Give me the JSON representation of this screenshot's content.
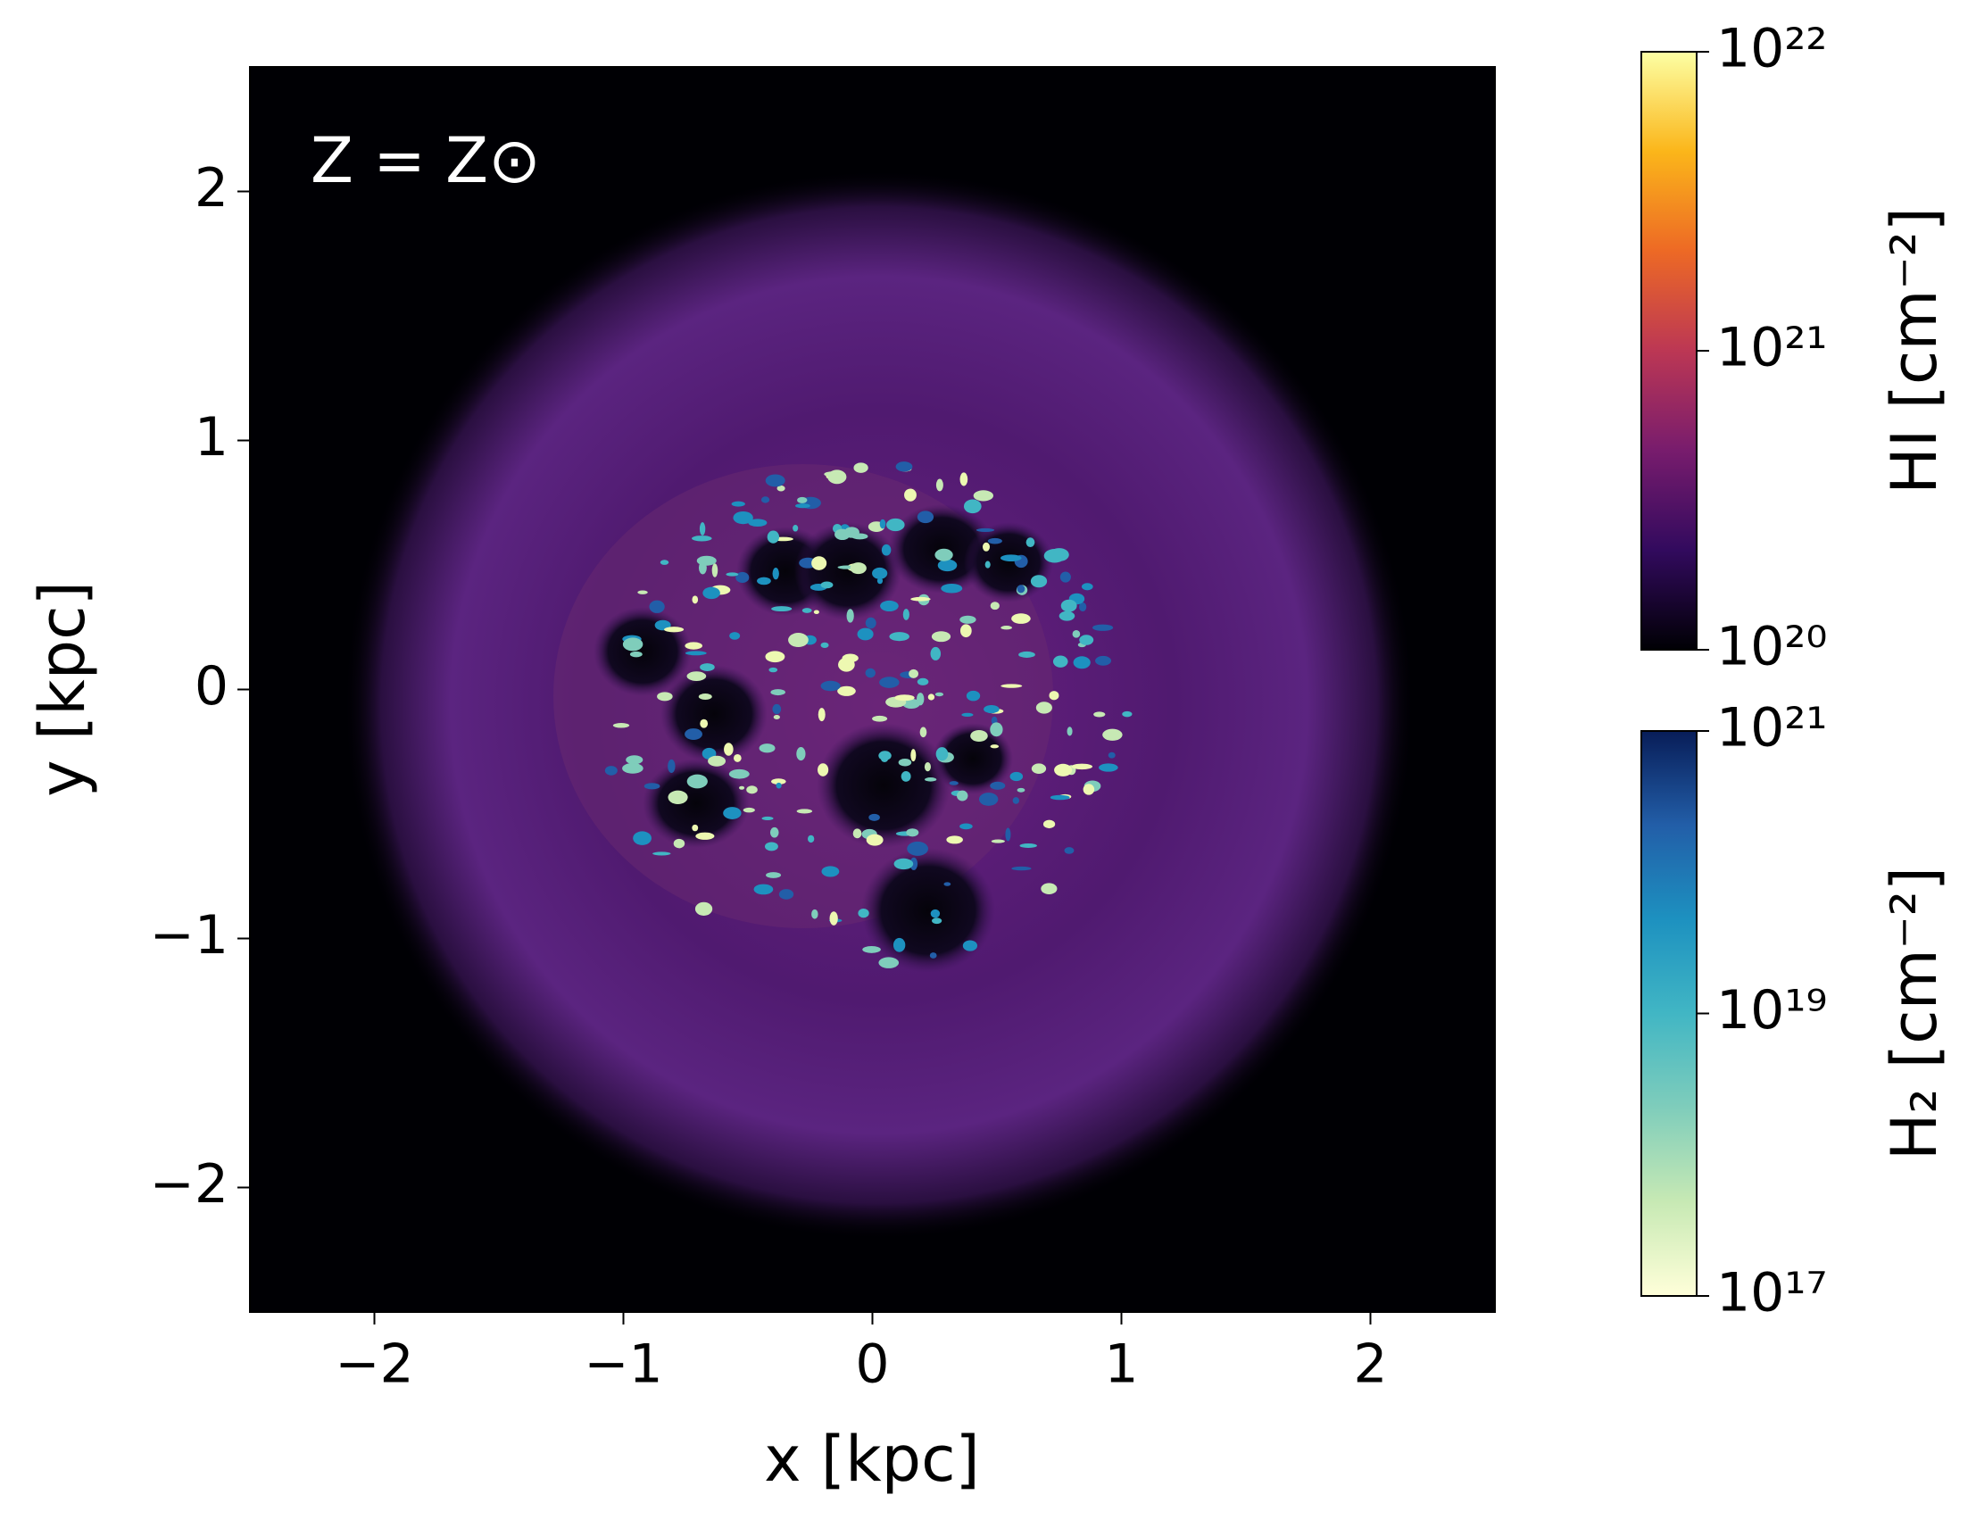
{
  "chart_data": {
    "type": "image",
    "annotation": "Z = Z⊙",
    "xlabel": "x [kpc]",
    "ylabel": "y [kpc]",
    "xlim": [
      -2.5,
      2.5
    ],
    "ylim": [
      -2.5,
      2.5
    ],
    "xticks": [
      {
        "value": -2,
        "label": "−2"
      },
      {
        "value": -1,
        "label": "−1"
      },
      0,
      1,
      2
    ],
    "yticks": [
      {
        "value": -2,
        "label": "−2"
      },
      {
        "value": -1,
        "label": "−1"
      },
      0,
      1,
      2
    ],
    "colorbars": [
      {
        "label": "HI [cm⁻²]",
        "log": true,
        "colormap": "inferno",
        "lim": [
          1e+20,
          1e+22
        ],
        "ticks": [
          {
            "value": 1e+20,
            "label": "10²⁰"
          },
          {
            "value": 1e+21,
            "label": "10²¹"
          },
          {
            "value": 1e+22,
            "label": "10²²"
          }
        ]
      },
      {
        "label": "H₂ [cm⁻²]",
        "log": true,
        "colormap": "YlGnBu",
        "lim": [
          1e+17,
          1e+21
        ],
        "ticks": [
          {
            "value": 1e+17,
            "label": "10¹⁷"
          },
          {
            "value": 1e+19,
            "label": "10¹⁹"
          },
          {
            "value": 1e+21,
            "label": "10²¹"
          }
        ]
      }
    ]
  }
}
